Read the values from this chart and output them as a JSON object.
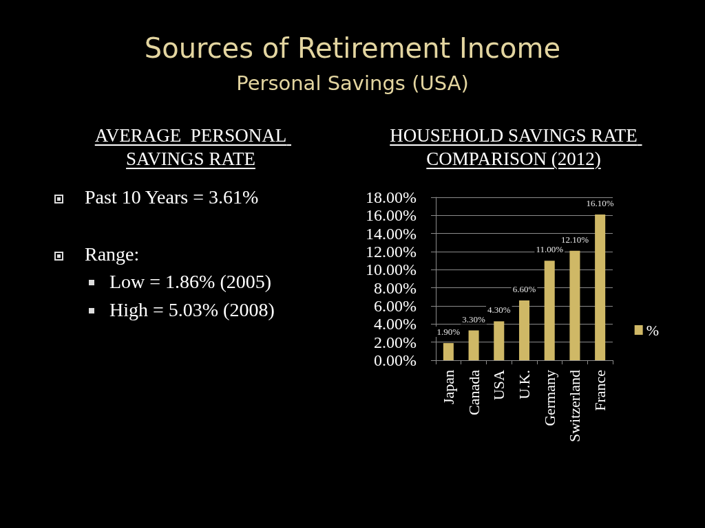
{
  "chart_data": {
    "type": "bar",
    "title": "Sources of Retirement Income",
    "subtitle": "Personal Savings (USA)",
    "annotations": [
      "HOUSEHOLD SAVINGS RATE COMPARISON (2012)",
      "AVERAGE  PERSONAL SAVINGS RATE",
      "Past 10 Years = 3.61%",
      "Range:",
      "Low = 1.86% (2005)",
      "High = 5.03% (2008)"
    ],
    "categories": [
      "Japan",
      "Canada",
      "USA",
      "U.K.",
      "Germany",
      "Switzerland",
      "France"
    ],
    "series": [
      {
        "name": "%",
        "color": "#cfb866",
        "values": [
          1.9,
          3.3,
          4.3,
          6.6,
          11.0,
          12.1,
          16.1
        ],
        "value_labels": [
          "1.90%",
          "3.30%",
          "4.30%",
          "6.60%",
          "11.00%",
          "12.10%",
          "16.10%"
        ]
      }
    ],
    "ylim": [
      0,
      18
    ],
    "yticks": [
      {
        "value": 0,
        "label": "0.00%"
      },
      {
        "value": 2,
        "label": "2.00%"
      },
      {
        "value": 4,
        "label": "4.00%"
      },
      {
        "value": 6,
        "label": "6.00%"
      },
      {
        "value": 8,
        "label": "8.00%"
      },
      {
        "value": 10,
        "label": "10.00%"
      },
      {
        "value": 12,
        "label": "12.00%"
      },
      {
        "value": 14,
        "label": "14.00%"
      },
      {
        "value": 16,
        "label": "16.00%"
      },
      {
        "value": 18,
        "label": "18.00%"
      }
    ],
    "grid": "y",
    "legend": "right"
  }
}
